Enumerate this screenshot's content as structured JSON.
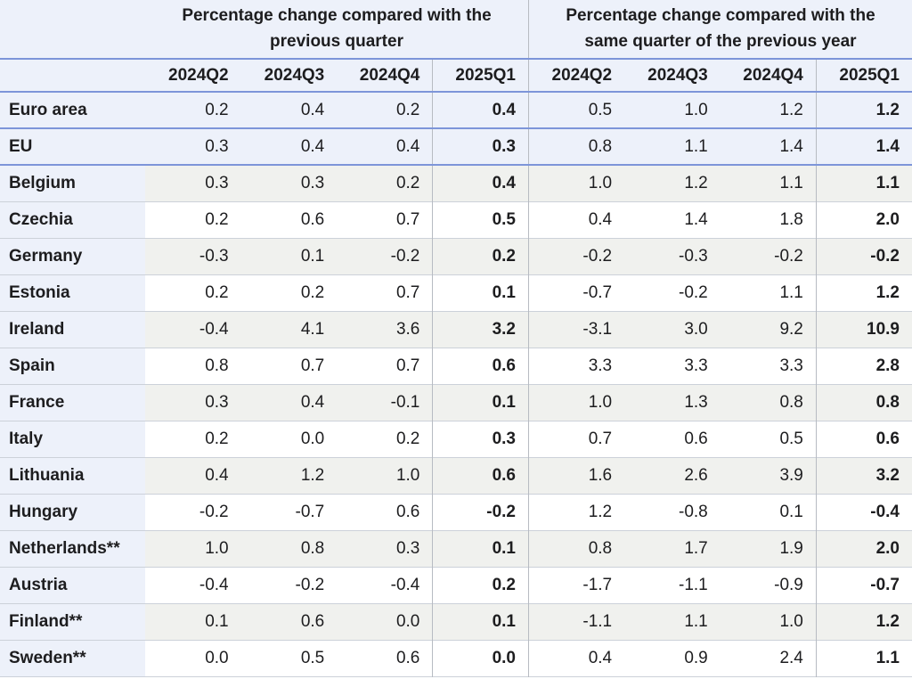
{
  "chart_data": {
    "type": "table",
    "column_groups": [
      "Percentage change compared with the previous quarter",
      "Percentage change compared with the same quarter of the previous year"
    ],
    "quarters": [
      "2024Q2",
      "2024Q3",
      "2024Q4",
      "2025Q1"
    ],
    "bold_quarter": "2025Q1",
    "row_header_column": "",
    "rows": [
      {
        "label": "Euro area",
        "style": "aggregate",
        "previous_quarter": [
          "0.2",
          "0.4",
          "0.2",
          "0.4"
        ],
        "previous_year": [
          "0.5",
          "1.0",
          "1.2",
          "1.2"
        ]
      },
      {
        "label": "EU",
        "style": "aggregate",
        "previous_quarter": [
          "0.3",
          "0.4",
          "0.4",
          "0.3"
        ],
        "previous_year": [
          "0.8",
          "1.1",
          "1.4",
          "1.4"
        ]
      },
      {
        "label": "Belgium",
        "style": "shade",
        "previous_quarter": [
          "0.3",
          "0.3",
          "0.2",
          "0.4"
        ],
        "previous_year": [
          "1.0",
          "1.2",
          "1.1",
          "1.1"
        ]
      },
      {
        "label": "Czechia",
        "style": "plain",
        "previous_quarter": [
          "0.2",
          "0.6",
          "0.7",
          "0.5"
        ],
        "previous_year": [
          "0.4",
          "1.4",
          "1.8",
          "2.0"
        ]
      },
      {
        "label": "Germany",
        "style": "shade",
        "previous_quarter": [
          "-0.3",
          "0.1",
          "-0.2",
          "0.2"
        ],
        "previous_year": [
          "-0.2",
          "-0.3",
          "-0.2",
          "-0.2"
        ]
      },
      {
        "label": "Estonia",
        "style": "plain",
        "previous_quarter": [
          "0.2",
          "0.2",
          "0.7",
          "0.1"
        ],
        "previous_year": [
          "-0.7",
          "-0.2",
          "1.1",
          "1.2"
        ]
      },
      {
        "label": "Ireland",
        "style": "shade",
        "previous_quarter": [
          "-0.4",
          "4.1",
          "3.6",
          "3.2"
        ],
        "previous_year": [
          "-3.1",
          "3.0",
          "9.2",
          "10.9"
        ]
      },
      {
        "label": "Spain",
        "style": "plain",
        "previous_quarter": [
          "0.8",
          "0.7",
          "0.7",
          "0.6"
        ],
        "previous_year": [
          "3.3",
          "3.3",
          "3.3",
          "2.8"
        ]
      },
      {
        "label": "France",
        "style": "shade",
        "previous_quarter": [
          "0.3",
          "0.4",
          "-0.1",
          "0.1"
        ],
        "previous_year": [
          "1.0",
          "1.3",
          "0.8",
          "0.8"
        ]
      },
      {
        "label": "Italy",
        "style": "plain",
        "previous_quarter": [
          "0.2",
          "0.0",
          "0.2",
          "0.3"
        ],
        "previous_year": [
          "0.7",
          "0.6",
          "0.5",
          "0.6"
        ]
      },
      {
        "label": "Lithuania",
        "style": "shade",
        "previous_quarter": [
          "0.4",
          "1.2",
          "1.0",
          "0.6"
        ],
        "previous_year": [
          "1.6",
          "2.6",
          "3.9",
          "3.2"
        ]
      },
      {
        "label": "Hungary",
        "style": "plain",
        "previous_quarter": [
          "-0.2",
          "-0.7",
          "0.6",
          "-0.2"
        ],
        "previous_year": [
          "1.2",
          "-0.8",
          "0.1",
          "-0.4"
        ]
      },
      {
        "label": "Netherlands**",
        "style": "shade",
        "previous_quarter": [
          "1.0",
          "0.8",
          "0.3",
          "0.1"
        ],
        "previous_year": [
          "0.8",
          "1.7",
          "1.9",
          "2.0"
        ]
      },
      {
        "label": "Austria",
        "style": "plain",
        "previous_quarter": [
          "-0.4",
          "-0.2",
          "-0.4",
          "0.2"
        ],
        "previous_year": [
          "-1.7",
          "-1.1",
          "-0.9",
          "-0.7"
        ]
      },
      {
        "label": "Finland**",
        "style": "shade",
        "previous_quarter": [
          "0.1",
          "0.6",
          "0.0",
          "0.1"
        ],
        "previous_year": [
          "-1.1",
          "1.1",
          "1.0",
          "1.2"
        ]
      },
      {
        "label": "Sweden**",
        "style": "plain",
        "previous_quarter": [
          "0.0",
          "0.5",
          "0.6",
          "0.0"
        ],
        "previous_year": [
          "0.4",
          "0.9",
          "2.4",
          "1.1"
        ]
      }
    ],
    "colors": {
      "header_bg": "#edf1fa",
      "aggregate_row_bg": "#edf1fa",
      "shaded_row_bg": "#f0f1ee",
      "plain_row_bg": "#ffffff",
      "blue_divider": "#7d95d9",
      "gray_divider": "#ccd1d9",
      "vertical_divider": "#b7bbc2",
      "text_color": "#1d1d1f"
    },
    "layout": {
      "grid": "off",
      "legend": "none",
      "value_alignment": "right",
      "bold_columns": [
        "2025Q1"
      ]
    }
  }
}
